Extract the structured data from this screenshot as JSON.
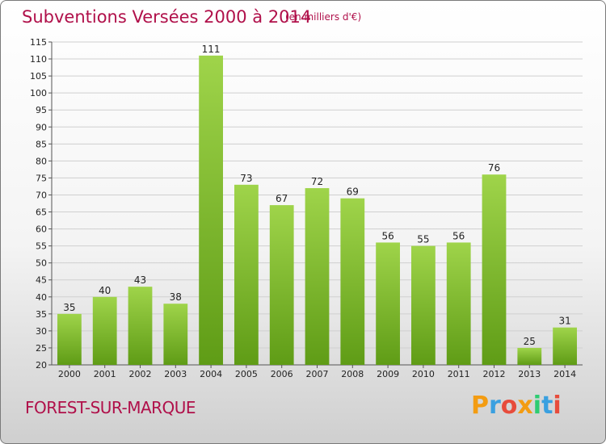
{
  "header": {
    "title": "Subventions Versées 2000 à 2014",
    "unit": "(en milliers d'€)"
  },
  "footer": {
    "town": "FOREST-SUR-MARQUE",
    "logo": "Proxiti",
    "logo_colors": [
      "#f39c12",
      "#3aa0e0",
      "#e74c3c",
      "#f39c12",
      "#2ecc71",
      "#3aa0e0",
      "#e74c3c"
    ]
  },
  "colors": {
    "title": "#b0104a",
    "bar_top": "#9fd44a",
    "bar_bottom": "#5f9c16",
    "grid": "#cfcfcf"
  },
  "chart_data": {
    "type": "bar",
    "title": "Subventions Versées 2000 à 2014",
    "subtitle": "(en milliers d'€)",
    "xlabel": "",
    "ylabel": "",
    "categories": [
      "2000",
      "2001",
      "2002",
      "2003",
      "2004",
      "2005",
      "2006",
      "2007",
      "2008",
      "2009",
      "2010",
      "2011",
      "2012",
      "2013",
      "2014"
    ],
    "values": [
      35,
      40,
      43,
      38,
      111,
      73,
      67,
      72,
      69,
      56,
      55,
      56,
      76,
      25,
      31
    ],
    "ylim": [
      20,
      115
    ],
    "yticks": [
      20,
      25,
      30,
      35,
      40,
      45,
      50,
      55,
      60,
      65,
      70,
      75,
      80,
      85,
      90,
      95,
      100,
      105,
      110,
      115
    ],
    "grid": true,
    "data_labels": true
  }
}
